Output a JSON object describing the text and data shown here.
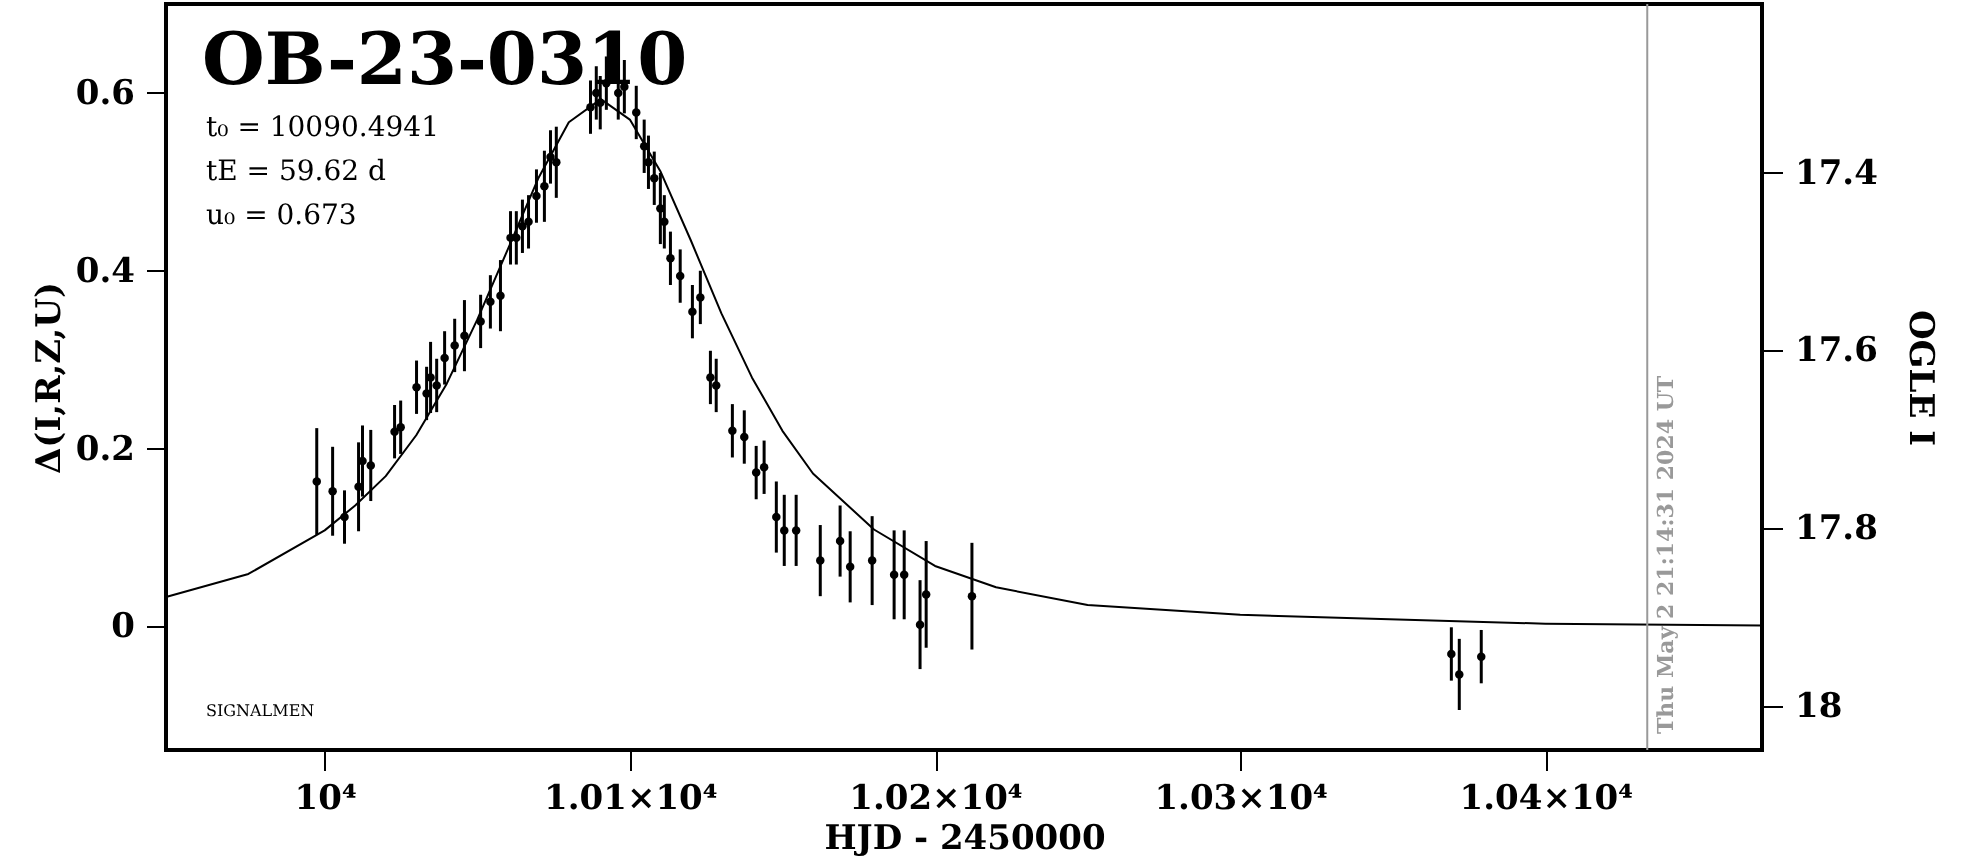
{
  "chart_data": {
    "type": "scatter",
    "title": "OB-23-0310",
    "xlabel": "HJD - 2450000",
    "ylabel": "Δ(I,R,Z,U)",
    "y2label": "OGLE I",
    "annotations": [
      "t₀ = 10090.4941",
      "tE = 59.62 d",
      "u₀ = 0.673",
      "SIGNALMEN",
      "Thu May  2 21:14:31 2024 UT"
    ],
    "xlim": [
      9948,
      10471
    ],
    "ylim": [
      -0.139,
      0.7
    ],
    "y2lim": [
      18.05,
      17.21
    ],
    "xticks": [
      {
        "value": 10000,
        "label": "10⁴"
      },
      {
        "value": 10100,
        "label": "1.01×10⁴"
      },
      {
        "value": 10200,
        "label": "1.02×10⁴"
      },
      {
        "value": 10300,
        "label": "1.03×10⁴"
      },
      {
        "value": 10400,
        "label": "1.04×10⁴"
      }
    ],
    "yticks": [
      0,
      0.2,
      0.4,
      0.6
    ],
    "y2ticks": [
      17.4,
      17.6,
      17.8,
      18
    ],
    "grid": false,
    "marker": "circle",
    "ref_lines": [
      {
        "axis": "x",
        "value": 10433.4,
        "color": "#999999"
      }
    ],
    "series": [
      {
        "color": "#000000",
        "x": [
          9997.4,
          10002.6,
          10006.5,
          10011.1,
          10012.4,
          10015.1,
          10022.9,
          10024.9,
          10030.1,
          10033.4,
          10034.7,
          10036.7,
          10039.3,
          10042.6,
          10045.8,
          10051.1,
          10054.3,
          10057.6,
          10060.9,
          10062.8,
          10064.8,
          10066.8,
          10069.4,
          10072.0,
          10074.0,
          10075.9,
          10087.1,
          10089.0,
          10090.3,
          10092.3,
          10096.2,
          10098.2,
          10102.1,
          10104.7,
          10106.1,
          10108.0,
          10110.0,
          10111.3,
          10113.3,
          10116.5,
          10120.5,
          10123.1,
          10126.4,
          10128.3,
          10133.6,
          10137.5,
          10141.4,
          10144.0,
          10148.0,
          10150.6,
          10154.5,
          10162.4,
          10168.9,
          10172.2,
          10179.4,
          10186.6,
          10189.9,
          10195.1,
          10197.1,
          10212.1,
          10369.2,
          10371.8,
          10379.0
        ],
        "values": [
          0.163,
          0.152,
          0.123,
          0.157,
          0.186,
          0.181,
          0.219,
          0.224,
          0.269,
          0.262,
          0.28,
          0.271,
          0.302,
          0.316,
          0.327,
          0.343,
          0.365,
          0.372,
          0.437,
          0.437,
          0.45,
          0.455,
          0.484,
          0.495,
          0.528,
          0.522,
          0.584,
          0.6,
          0.589,
          0.611,
          0.6,
          0.607,
          0.578,
          0.54,
          0.522,
          0.504,
          0.47,
          0.455,
          0.414,
          0.394,
          0.354,
          0.37,
          0.28,
          0.271,
          0.22,
          0.213,
          0.173,
          0.179,
          0.123,
          0.108,
          0.108,
          0.074,
          0.096,
          0.067,
          0.074,
          0.058,
          0.058,
          0.002,
          0.036,
          0.034,
          -0.031,
          -0.054,
          -0.034
        ],
        "errors": [
          0.06,
          0.05,
          0.03,
          0.05,
          0.04,
          0.04,
          0.03,
          0.03,
          0.03,
          0.03,
          0.04,
          0.03,
          0.03,
          0.03,
          0.04,
          0.03,
          0.03,
          0.04,
          0.03,
          0.03,
          0.03,
          0.03,
          0.03,
          0.04,
          0.03,
          0.04,
          0.03,
          0.03,
          0.03,
          0.03,
          0.03,
          0.03,
          0.03,
          0.03,
          0.03,
          0.03,
          0.04,
          0.03,
          0.03,
          0.03,
          0.03,
          0.03,
          0.03,
          0.03,
          0.03,
          0.03,
          0.03,
          0.03,
          0.04,
          0.04,
          0.04,
          0.04,
          0.04,
          0.04,
          0.05,
          0.05,
          0.05,
          0.05,
          0.06,
          0.06,
          0.03,
          0.04,
          0.03
        ]
      },
      {
        "type": "line",
        "marker": "none",
        "color": "#000000",
        "x": [
          9948,
          9975,
          10000,
          10010,
          10020,
          10030,
          10040,
          10050,
          10060,
          10070,
          10080,
          10090.5,
          10100,
          10110,
          10120,
          10130,
          10140,
          10150,
          10160,
          10180,
          10200,
          10220,
          10250,
          10300,
          10400,
          10471
        ],
        "values": [
          0.033,
          0.059,
          0.108,
          0.136,
          0.169,
          0.215,
          0.273,
          0.345,
          0.424,
          0.504,
          0.567,
          0.593,
          0.57,
          0.512,
          0.434,
          0.352,
          0.28,
          0.22,
          0.172,
          0.109,
          0.068,
          0.044,
          0.024,
          0.013,
          0.003,
          0.001
        ]
      }
    ]
  }
}
